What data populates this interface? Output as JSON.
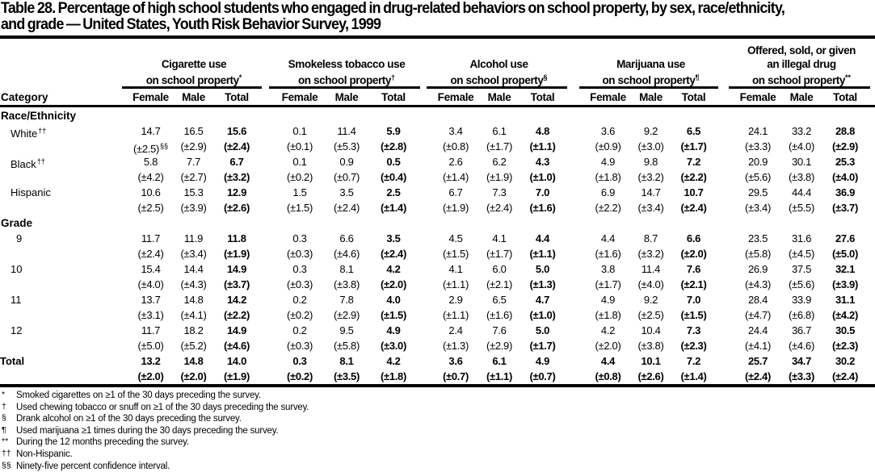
{
  "title": {
    "line1": "Table 28. Percentage of high school students who engaged in drug-related behaviors on school property, by sex, race/ethnicity,",
    "line2": "and grade — United States, Youth Risk Behavior Survey, 1999"
  },
  "header": {
    "category_label": "Category",
    "sub_labels": [
      "Female",
      "Male",
      "Total"
    ],
    "groups": [
      {
        "line1": "Cigarette use",
        "line2": "on school property",
        "sup": "*"
      },
      {
        "line1": "Smokeless tobacco use",
        "line2": "on school property",
        "sup": "†"
      },
      {
        "line1": "Alcohol use",
        "line2": "on school property",
        "sup": "§"
      },
      {
        "line1": "Marijuana use",
        "line2": "on school property",
        "sup": "¶"
      },
      {
        "line1": "Offered, sold, or given",
        "line2": "an illegal drug",
        "line3": "on school property",
        "sup": "**"
      }
    ]
  },
  "sections": [
    {
      "heading": "Race/Ethnicity",
      "rows": [
        {
          "label": "White",
          "label_sup": "††",
          "values": [
            "14.7",
            "16.5",
            "15.6",
            "0.1",
            "11.4",
            "5.9",
            "3.4",
            "6.1",
            "4.8",
            "3.6",
            "9.2",
            "6.5",
            "24.1",
            "33.2",
            "28.8"
          ],
          "ci": [
            "(±2.5)",
            "(±2.9)",
            "(±2.4)",
            "(±0.1)",
            "(±5.3)",
            "(±2.8)",
            "(±0.8)",
            "(±1.7)",
            "(±1.1)",
            "(±0.9)",
            "(±3.0)",
            "(±1.7)",
            "(±3.3)",
            "(±4.0)",
            "(±2.9)"
          ],
          "ci_sup": "§§"
        },
        {
          "label": "Black",
          "label_sup": "††",
          "values": [
            "5.8",
            "7.7",
            "6.7",
            "0.1",
            "0.9",
            "0.5",
            "2.6",
            "6.2",
            "4.3",
            "4.9",
            "9.8",
            "7.2",
            "20.9",
            "30.1",
            "25.3"
          ],
          "ci": [
            "(±4.2)",
            "(±2.7)",
            "(±3.2)",
            "(±0.2)",
            "(±0.7)",
            "(±0.4)",
            "(±1.4)",
            "(±1.9)",
            "(±1.0)",
            "(±1.8)",
            "(±3.2)",
            "(±2.2)",
            "(±5.6)",
            "(±3.8)",
            "(±4.0)"
          ]
        },
        {
          "label": "Hispanic",
          "values": [
            "10.6",
            "15.3",
            "12.9",
            "1.5",
            "3.5",
            "2.5",
            "6.7",
            "7.3",
            "7.0",
            "6.9",
            "14.7",
            "10.7",
            "29.5",
            "44.4",
            "36.9"
          ],
          "ci": [
            "(±2.5)",
            "(±3.9)",
            "(±2.6)",
            "(±1.5)",
            "(±2.4)",
            "(±1.4)",
            "(±1.9)",
            "(±2.4)",
            "(±1.6)",
            "(±2.2)",
            "(±3.4)",
            "(±2.4)",
            "(±3.4)",
            "(±5.5)",
            "(±3.7)"
          ]
        }
      ]
    },
    {
      "heading": "Grade",
      "rows": [
        {
          "label": "9",
          "values": [
            "11.7",
            "11.9",
            "11.8",
            "0.3",
            "6.6",
            "3.5",
            "4.5",
            "4.1",
            "4.4",
            "4.4",
            "8.7",
            "6.6",
            "23.5",
            "31.6",
            "27.6"
          ],
          "ci": [
            "(±2.4)",
            "(±3.4)",
            "(±1.9)",
            "(±0.3)",
            "(±4.6)",
            "(±2.4)",
            "(±1.5)",
            "(±1.7)",
            "(±1.1)",
            "(±1.6)",
            "(±3.2)",
            "(±2.0)",
            "(±5.8)",
            "(±4.5)",
            "(±5.0)"
          ]
        },
        {
          "label": "10",
          "values": [
            "15.4",
            "14.4",
            "14.9",
            "0.3",
            "8.1",
            "4.2",
            "4.1",
            "6.0",
            "5.0",
            "3.8",
            "11.4",
            "7.6",
            "26.9",
            "37.5",
            "32.1"
          ],
          "ci": [
            "(±4.0)",
            "(±4.3)",
            "(±3.7)",
            "(±0.3)",
            "(±3.8)",
            "(±2.0)",
            "(±1.1)",
            "(±2.1)",
            "(±1.3)",
            "(±1.7)",
            "(±4.0)",
            "(±2.1)",
            "(±4.3)",
            "(±5.6)",
            "(±3.9)"
          ]
        },
        {
          "label": "11",
          "values": [
            "13.7",
            "14.8",
            "14.2",
            "0.2",
            "7.8",
            "4.0",
            "2.9",
            "6.5",
            "4.7",
            "4.9",
            "9.2",
            "7.0",
            "28.4",
            "33.9",
            "31.1"
          ],
          "ci": [
            "(±3.1)",
            "(±4.1)",
            "(±2.2)",
            "(±0.2)",
            "(±2.9)",
            "(±1.5)",
            "(±1.1)",
            "(±1.6)",
            "(±1.0)",
            "(±1.8)",
            "(±2.5)",
            "(±1.5)",
            "(±4.7)",
            "(±6.8)",
            "(±4.2)"
          ]
        },
        {
          "label": "12",
          "values": [
            "11.7",
            "18.2",
            "14.9",
            "0.2",
            "9.5",
            "4.9",
            "2.4",
            "7.6",
            "5.0",
            "4.2",
            "10.4",
            "7.3",
            "24.4",
            "36.7",
            "30.5"
          ],
          "ci": [
            "(±5.0)",
            "(±5.2)",
            "(±4.6)",
            "(±0.3)",
            "(±5.8)",
            "(±3.0)",
            "(±1.3)",
            "(±2.9)",
            "(±1.7)",
            "(±2.0)",
            "(±3.8)",
            "(±2.3)",
            "(±4.1)",
            "(±4.6)",
            "(±2.3)"
          ]
        }
      ]
    }
  ],
  "total_row": {
    "label": "Total",
    "values": [
      "13.2",
      "14.8",
      "14.0",
      "0.3",
      "8.1",
      "4.2",
      "3.6",
      "6.1",
      "4.9",
      "4.4",
      "10.1",
      "7.2",
      "25.7",
      "34.7",
      "30.2"
    ],
    "ci": [
      "(±2.0)",
      "(±2.0)",
      "(±1.9)",
      "(±0.2)",
      "(±3.5)",
      "(±1.8)",
      "(±0.7)",
      "(±1.1)",
      "(±0.7)",
      "(±0.8)",
      "(±2.6)",
      "(±1.4)",
      "(±2.4)",
      "(±3.3)",
      "(±2.4)"
    ]
  },
  "footnotes": [
    {
      "marker": "*",
      "text": "Smoked cigarettes on ≥1 of the 30 days preceding the survey."
    },
    {
      "marker": "†",
      "text": "Used chewing tobacco or snuff on ≥1 of the 30 days preceding the survey."
    },
    {
      "marker": "§",
      "text": "Drank alcohol on ≥1 of the 30 days preceding the survey."
    },
    {
      "marker": "¶",
      "text": "Used marijuana ≥1 times during the 30 days preceding the survey."
    },
    {
      "marker": "**",
      "text": "During the 12 months preceding the survey."
    },
    {
      "marker": "††",
      "text": "Non-Hispanic."
    },
    {
      "marker": "§§",
      "text": "Ninety-five percent confidence interval."
    }
  ],
  "colors": {
    "text": "#000000",
    "background": "#ffffff"
  }
}
